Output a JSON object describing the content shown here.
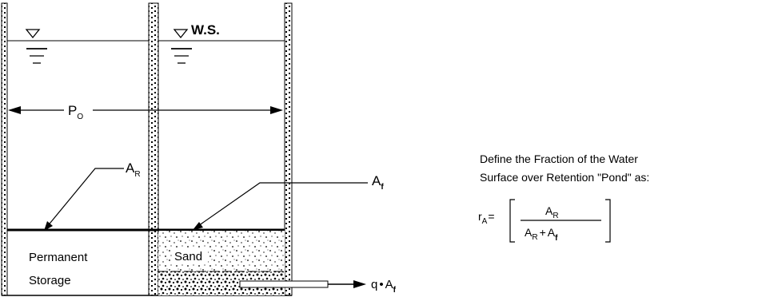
{
  "diagram": {
    "ws_label": "W.S.",
    "perimeter_label": "P",
    "perimeter_sub": "O",
    "retention_area_label": "A",
    "retention_area_sub": "R",
    "filter_area_label": "A",
    "filter_area_sub": "f",
    "permanent_label": "Permanent",
    "storage_label": "Storage",
    "sand_label": "Sand",
    "outflow_label": "q",
    "outflow_area_label": "A",
    "outflow_area_sub": "f"
  },
  "definition": {
    "line1": "Define the Fraction of the Water",
    "line2": "Surface over Retention \"Pond\" as:",
    "symbol": "r",
    "symbol_sub": "A",
    "equals": "=",
    "numerator": "A",
    "numerator_sub": "R",
    "denom_a": "A",
    "denom_a_sub": "R",
    "plus": "+",
    "denom_b": "A",
    "denom_b_sub": "f"
  },
  "colors": {
    "ink": "#000000",
    "background": "#ffffff"
  }
}
